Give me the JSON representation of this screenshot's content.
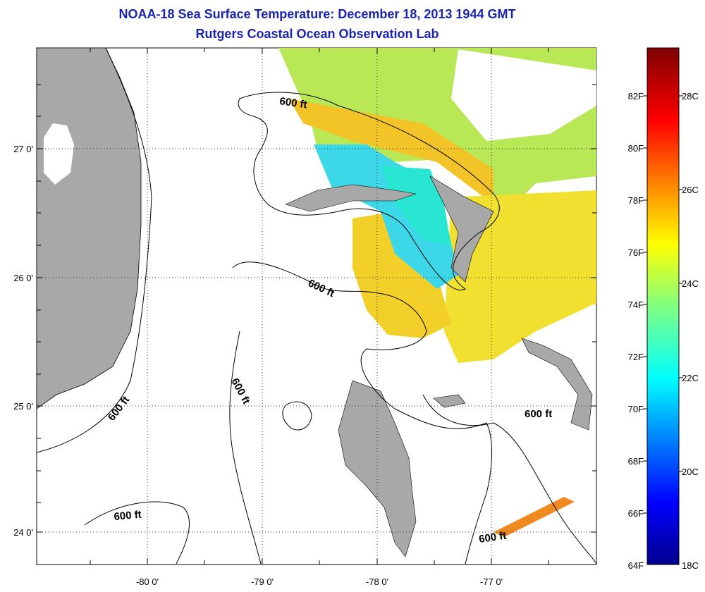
{
  "title": "NOAA-18 Sea Surface Temperature:  December 18, 2013 1944 GMT",
  "subtitle": "Rutgers Coastal Ocean Observation Lab",
  "map": {
    "lat_ticks": [
      "27 0'",
      "26 0'",
      "25 0'",
      "24 0'"
    ],
    "lon_ticks": [
      "-80 0'",
      "-79 0'",
      "-78 0'",
      "-77 0'"
    ],
    "contour_label": "600 ft",
    "land_color": "#a8a8a8",
    "grid_style": "dotted"
  },
  "colorbar": {
    "fahrenheit_labels": [
      "82F",
      "80F",
      "78F",
      "76F",
      "74F",
      "72F",
      "70F",
      "68F",
      "66F",
      "64F"
    ],
    "celsius_labels": [
      "28C",
      "26C",
      "24C",
      "22C",
      "20C",
      "18C"
    ],
    "colormap": "jet",
    "min_label": "64F / 18C",
    "colors": [
      "#7f0000",
      "#ff0000",
      "#ff8000",
      "#ffff00",
      "#80ff80",
      "#00ffff",
      "#0080ff",
      "#0000ff",
      "#00008f"
    ]
  }
}
